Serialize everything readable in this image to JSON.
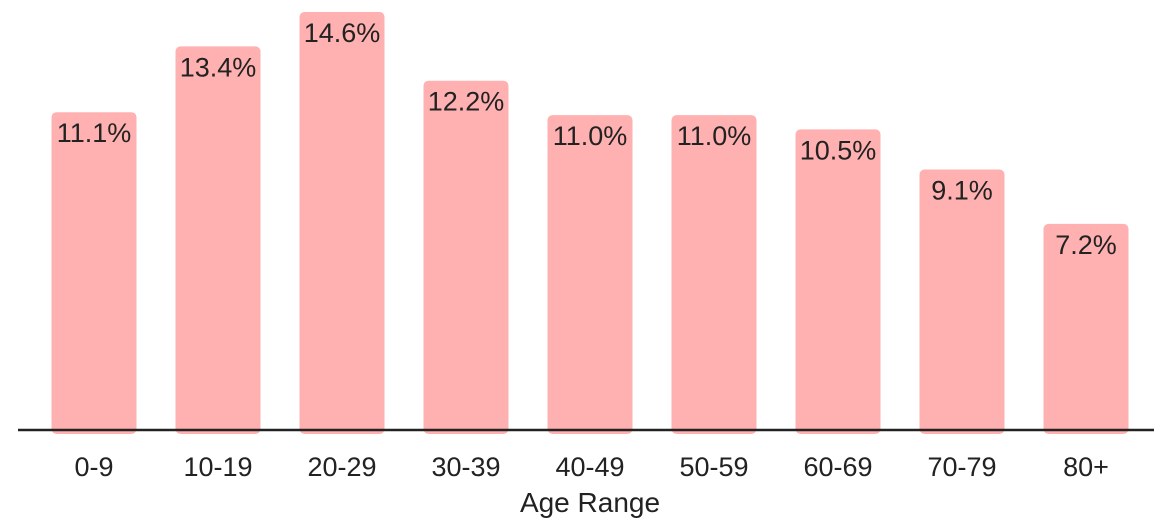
{
  "chart_data": {
    "type": "bar",
    "categories": [
      "0-9",
      "10-19",
      "20-29",
      "30-39",
      "40-49",
      "50-59",
      "60-69",
      "70-79",
      "80+"
    ],
    "values": [
      11.1,
      13.4,
      14.6,
      12.2,
      11.0,
      11.0,
      10.5,
      9.1,
      7.2
    ],
    "data_labels": [
      "11.1%",
      "13.4%",
      "14.6%",
      "12.2%",
      "11.0%",
      "11.0%",
      "10.5%",
      "9.1%",
      "7.2%"
    ],
    "title": "",
    "xlabel": "Age Range",
    "ylabel": "",
    "ylim": [
      0,
      14.6
    ],
    "grid": false,
    "legend": "none",
    "colors": {
      "bar": "#ffb0b0",
      "axis": "#222222",
      "text": "#222222"
    }
  }
}
